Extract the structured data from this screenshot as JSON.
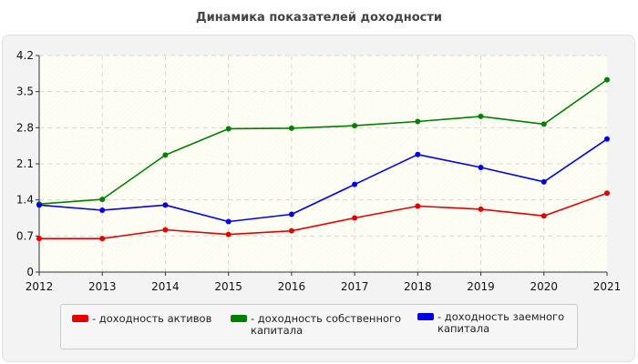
{
  "chart_data": {
    "type": "line",
    "title": "Динамика показателей доходности",
    "x": [
      "2012",
      "2013",
      "2014",
      "2015",
      "2016",
      "2017",
      "2018",
      "2019",
      "2020",
      "2021"
    ],
    "ylim": [
      0,
      4.2
    ],
    "yticks": [
      "0",
      "0.7",
      "1.4",
      "2.1",
      "2.8",
      "3.5",
      "4.2"
    ],
    "grid": true,
    "legend_position": "bottom",
    "series": [
      {
        "name": "- доходность активов",
        "color": "#e60000",
        "values": [
          0.65,
          0.65,
          0.82,
          0.73,
          0.8,
          1.05,
          1.28,
          1.22,
          1.09,
          1.53
        ]
      },
      {
        "name": "- доходность собственного капитала",
        "color": "#008000",
        "values": [
          1.32,
          1.41,
          2.27,
          2.78,
          2.79,
          2.84,
          2.92,
          3.02,
          2.87,
          3.73
        ]
      },
      {
        "name": "- доходность заемного капитала",
        "color": "#0000e6",
        "values": [
          1.3,
          1.2,
          1.3,
          0.98,
          1.12,
          1.7,
          2.28,
          2.03,
          1.75,
          2.58
        ]
      }
    ]
  }
}
